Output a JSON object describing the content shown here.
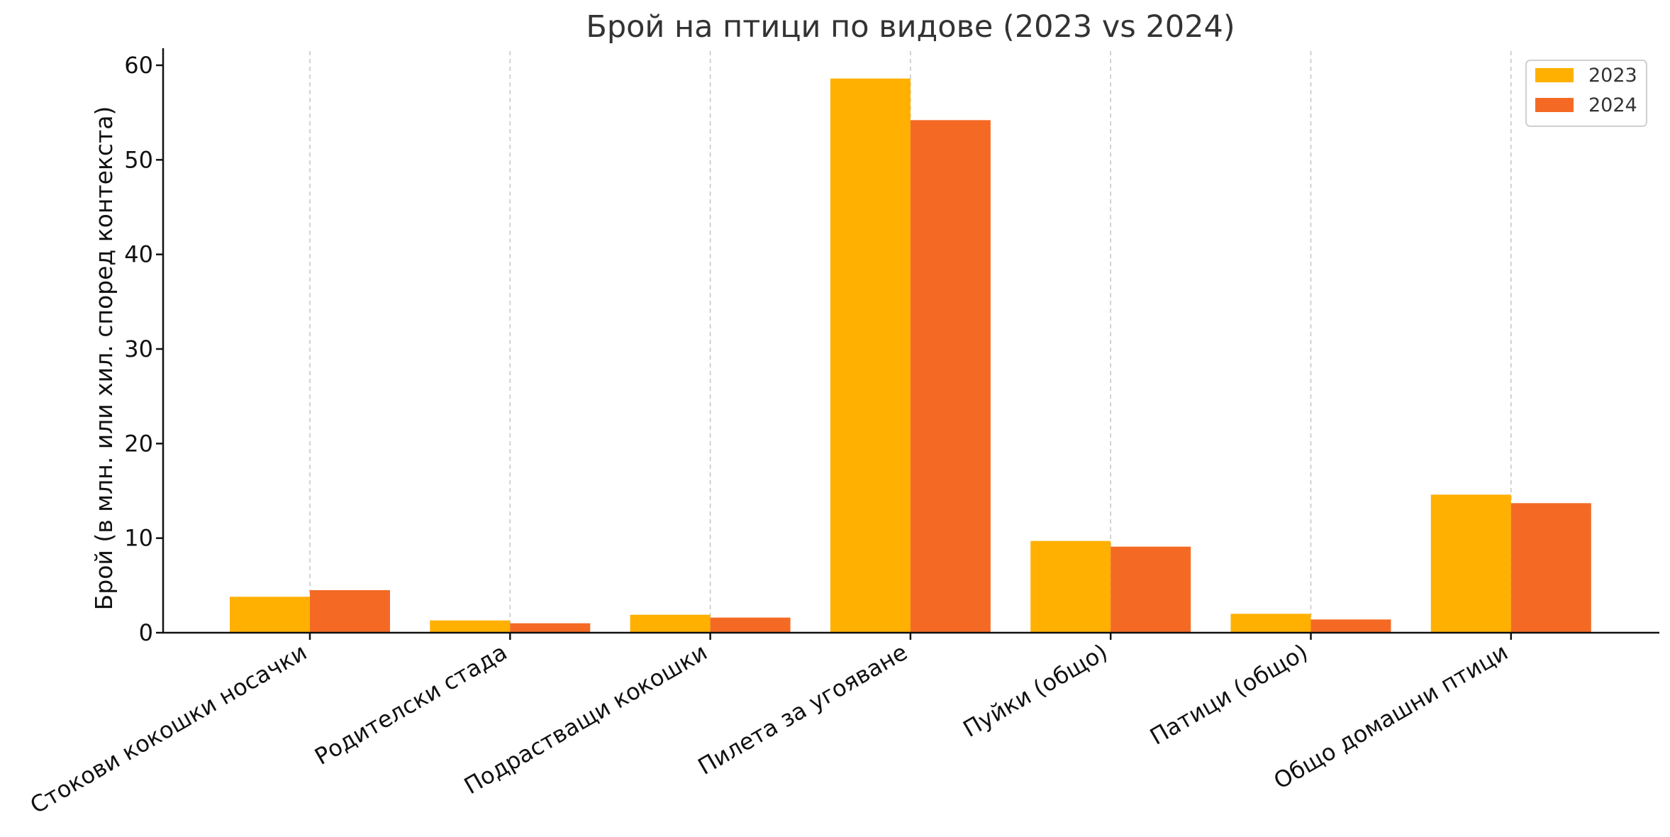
{
  "chart_data": {
    "type": "bar",
    "title": "Брой на птици по видове (2023 vs 2024)",
    "xlabel": "",
    "ylabel": "Брой (в млн. или хил. според контекста)",
    "categories": [
      "Стокови кокошки носачки",
      "Родителски стада",
      "Подрастващи кокошки",
      "Пилета за угояване",
      "Пуйки (общо)",
      "Патици (общо)",
      "Общо домашни птици"
    ],
    "series": [
      {
        "name": "2023",
        "color": "#ffb000",
        "values": [
          3.8,
          1.3,
          1.9,
          58.6,
          9.7,
          2.0,
          14.6
        ]
      },
      {
        "name": "2024",
        "color": "#f46a25",
        "values": [
          4.5,
          1.0,
          1.6,
          54.2,
          9.1,
          1.4,
          13.7
        ]
      }
    ],
    "ylim": [
      0,
      61.5
    ],
    "yticks": [
      0,
      10,
      20,
      30,
      40,
      50,
      60
    ],
    "grid": "x-dashed",
    "legend_position": "top-right"
  }
}
